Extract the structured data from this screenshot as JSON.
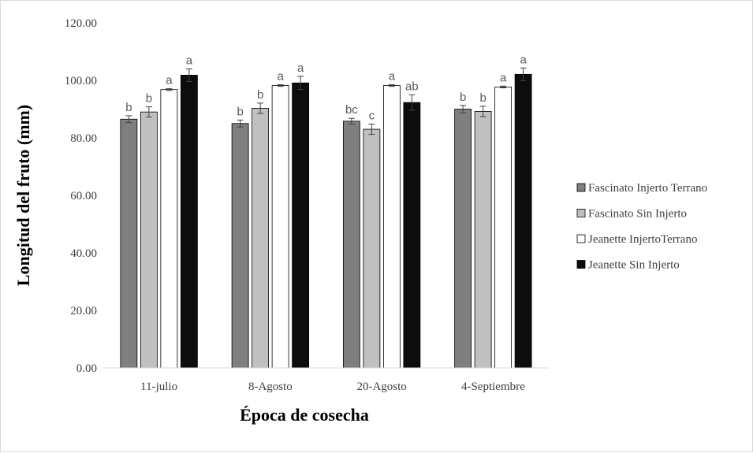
{
  "chart_data": {
    "type": "bar",
    "xlabel": "Época de cosecha",
    "ylabel": "Longitud del fruto (mm)",
    "ylim": [
      0,
      120
    ],
    "yticks": [
      "0.00",
      "20.00",
      "40.00",
      "60.00",
      "80.00",
      "100.00",
      "120.00"
    ],
    "ytick_values": [
      0,
      20,
      40,
      60,
      80,
      100,
      120
    ],
    "grid": false,
    "legend_position": "right",
    "categories": [
      "11-julio",
      "8-Agosto",
      "20-Agosto",
      "4-Septiembre"
    ],
    "series": [
      {
        "name": "Fascinato Injerto Terrano",
        "color": "#7f7f7f",
        "values": [
          86.5,
          85.0,
          85.8,
          90.0
        ],
        "errors": [
          1.2,
          1.2,
          1.0,
          1.3
        ],
        "labels": [
          "b",
          "b",
          "bc",
          "b"
        ]
      },
      {
        "name": "Fascinato Sin Injerto",
        "color": "#c0c0c0",
        "values": [
          89.0,
          90.3,
          83.0,
          89.2
        ],
        "errors": [
          1.8,
          1.8,
          1.8,
          1.8
        ],
        "labels": [
          "b",
          "b",
          "c",
          "b"
        ]
      },
      {
        "name": "Jeanette InjertoTerrano",
        "color": "#ffffff",
        "values": [
          96.8,
          98.2,
          98.2,
          97.7
        ],
        "errors": [
          0.3,
          0.3,
          0.3,
          0.3
        ],
        "labels": [
          "a",
          "a",
          "a",
          "a"
        ]
      },
      {
        "name": "Jeanette Sin Injerto",
        "color": "#0d0d0d",
        "values": [
          101.8,
          99.1,
          92.3,
          102.1
        ],
        "errors": [
          2.2,
          2.3,
          2.7,
          2.2
        ],
        "labels": [
          "a",
          "a",
          "ab",
          "a"
        ]
      }
    ]
  }
}
